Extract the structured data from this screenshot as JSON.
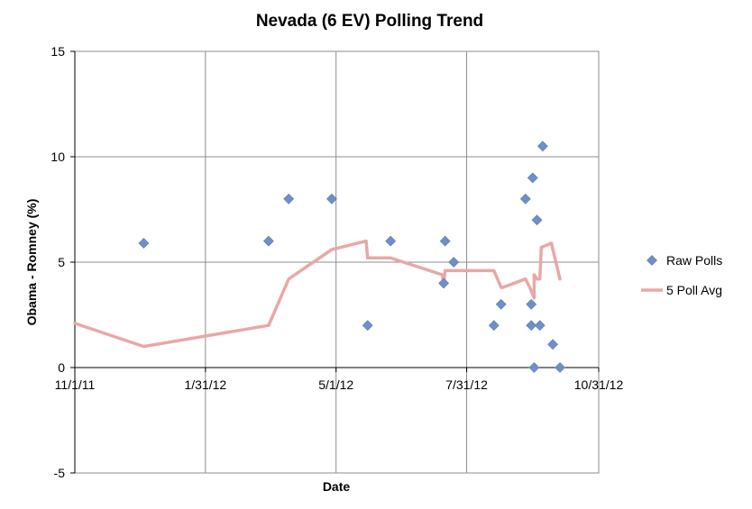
{
  "chart_data": {
    "type": "scatter",
    "title": "Nevada (6 EV) Polling Trend",
    "xlabel": "Date",
    "ylabel": "Obama - Romney (%)",
    "x_type": "date",
    "xlim": [
      "2011-11-01",
      "2012-10-31"
    ],
    "ylim": [
      -5,
      15
    ],
    "x_ticks": [
      "2011-11-01",
      "2012-01-31",
      "2012-05-01",
      "2012-07-31",
      "2012-10-31"
    ],
    "x_tick_labels": [
      "11/1/11",
      "1/31/12",
      "5/1/12",
      "7/31/12",
      "10/31/12"
    ],
    "y_ticks": [
      -5,
      0,
      5,
      10,
      15
    ],
    "y_tick_labels": [
      "-5",
      "0",
      "5",
      "10",
      "15"
    ],
    "grid": true,
    "legend_position": "right",
    "series": [
      {
        "name": "Raw Polls",
        "kind": "scatter",
        "marker": "diamond",
        "color": "#6f8fc6",
        "points": [
          {
            "x": "2011-12-19",
            "y": 5.9
          },
          {
            "x": "2012-03-15",
            "y": 6.0
          },
          {
            "x": "2012-03-29",
            "y": 8.0
          },
          {
            "x": "2012-04-28",
            "y": 8.0
          },
          {
            "x": "2012-05-23",
            "y": 2.0
          },
          {
            "x": "2012-06-08",
            "y": 6.0
          },
          {
            "x": "2012-07-15",
            "y": 4.0
          },
          {
            "x": "2012-07-16",
            "y": 6.0
          },
          {
            "x": "2012-07-22",
            "y": 5.0
          },
          {
            "x": "2012-08-19",
            "y": 2.0
          },
          {
            "x": "2012-08-24",
            "y": 3.0
          },
          {
            "x": "2012-09-10",
            "y": 8.0
          },
          {
            "x": "2012-09-14",
            "y": 3.0
          },
          {
            "x": "2012-09-14",
            "y": 2.0
          },
          {
            "x": "2012-09-15",
            "y": 9.0
          },
          {
            "x": "2012-09-16",
            "y": 0.0
          },
          {
            "x": "2012-09-18",
            "y": 7.0
          },
          {
            "x": "2012-09-20",
            "y": 2.0
          },
          {
            "x": "2012-09-22",
            "y": 10.5
          },
          {
            "x": "2012-09-29",
            "y": 1.1
          },
          {
            "x": "2012-10-04",
            "y": 0.0
          }
        ]
      },
      {
        "name": "5 Poll Avg",
        "kind": "line",
        "color": "#e8a8a6",
        "points": [
          {
            "x": "2011-11-01",
            "y": 2.1
          },
          {
            "x": "2011-12-19",
            "y": 1.0
          },
          {
            "x": "2012-03-15",
            "y": 2.0
          },
          {
            "x": "2012-03-29",
            "y": 4.2
          },
          {
            "x": "2012-04-28",
            "y": 5.6
          },
          {
            "x": "2012-05-22",
            "y": 6.0
          },
          {
            "x": "2012-05-23",
            "y": 5.2
          },
          {
            "x": "2012-06-08",
            "y": 5.2
          },
          {
            "x": "2012-07-14",
            "y": 4.4
          },
          {
            "x": "2012-07-15",
            "y": 4.0
          },
          {
            "x": "2012-07-16",
            "y": 4.6
          },
          {
            "x": "2012-08-19",
            "y": 4.6
          },
          {
            "x": "2012-08-24",
            "y": 3.8
          },
          {
            "x": "2012-08-25",
            "y": 3.8
          },
          {
            "x": "2012-09-10",
            "y": 4.2
          },
          {
            "x": "2012-09-13",
            "y": 3.8
          },
          {
            "x": "2012-09-16",
            "y": 3.3
          },
          {
            "x": "2012-09-16",
            "y": 4.4
          },
          {
            "x": "2012-09-18",
            "y": 4.2
          },
          {
            "x": "2012-09-20",
            "y": 4.2
          },
          {
            "x": "2012-09-21",
            "y": 5.7
          },
          {
            "x": "2012-09-28",
            "y": 5.9
          },
          {
            "x": "2012-10-04",
            "y": 4.2
          }
        ]
      }
    ]
  }
}
